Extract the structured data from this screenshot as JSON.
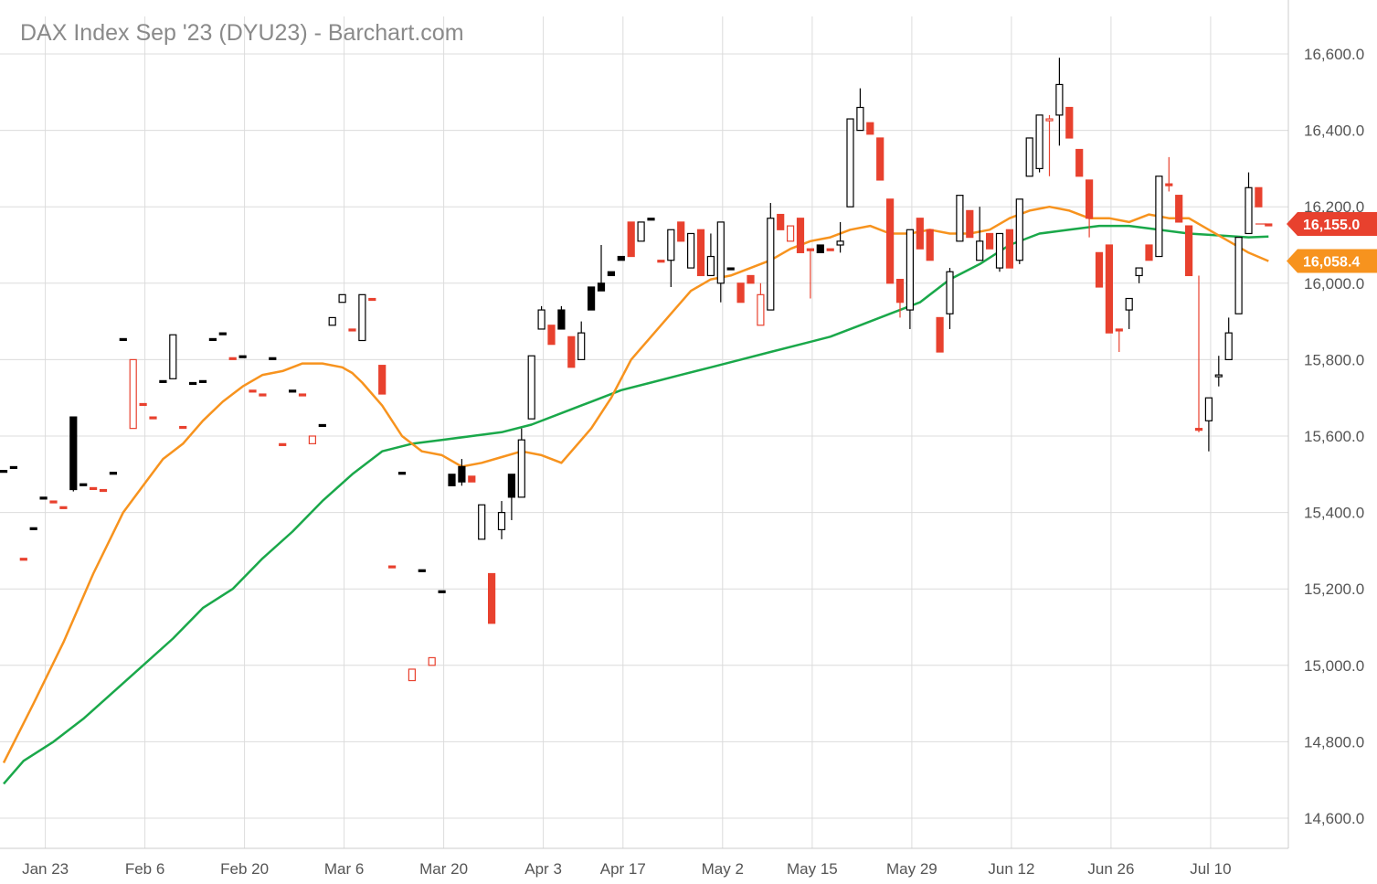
{
  "chart_data": {
    "type": "candlestick",
    "title": "DAX Index Sep '23 (DYU23) - Barchart.com",
    "ylim": [
      14500,
      16700
    ],
    "y_ticks": [
      {
        "value": 14600,
        "label": "14,600.0"
      },
      {
        "value": 14800,
        "label": "14,800.0"
      },
      {
        "value": 15000,
        "label": "15,000.0"
      },
      {
        "value": 15200,
        "label": "15,200.0"
      },
      {
        "value": 15400,
        "label": "15,400.0"
      },
      {
        "value": 15600,
        "label": "15,600.0"
      },
      {
        "value": 15800,
        "label": "15,800.0"
      },
      {
        "value": 16000,
        "label": "16,000.0"
      },
      {
        "value": 16200,
        "label": "16,200.0"
      },
      {
        "value": 16400,
        "label": "16,400.0"
      },
      {
        "value": 16600,
        "label": "16,600.0"
      }
    ],
    "x_ticks": [
      {
        "index": 4,
        "label": "Jan 23"
      },
      {
        "index": 14,
        "label": "Feb 6"
      },
      {
        "index": 24,
        "label": "Feb 20"
      },
      {
        "index": 34,
        "label": "Mar 6"
      },
      {
        "index": 44,
        "label": "Mar 20"
      },
      {
        "index": 54,
        "label": "Apr 3"
      },
      {
        "index": 62,
        "label": "Apr 17"
      },
      {
        "index": 72,
        "label": "May 2"
      },
      {
        "index": 81,
        "label": "May 15"
      },
      {
        "index": 91,
        "label": "May 29"
      },
      {
        "index": 101,
        "label": "Jun 12"
      },
      {
        "index": 111,
        "label": "Jun 26"
      },
      {
        "index": 121,
        "label": "Jul 10"
      }
    ],
    "candles": [
      [
        0,
        15510,
        15510,
        15510,
        15510,
        "k"
      ],
      [
        1,
        15520,
        15520,
        15520,
        15520,
        "k"
      ],
      [
        2,
        15280,
        15280,
        15280,
        15280,
        "r"
      ],
      [
        3,
        15360,
        15360,
        15360,
        15360,
        "k"
      ],
      [
        4,
        15440,
        15440,
        15440,
        15440,
        "k"
      ],
      [
        5,
        15430,
        15430,
        15430,
        15430,
        "r"
      ],
      [
        6,
        15415,
        15415,
        15415,
        15415,
        "r"
      ],
      [
        7,
        15460,
        15650,
        15455,
        15650,
        "k"
      ],
      [
        8,
        15475,
        15475,
        15475,
        15475,
        "k"
      ],
      [
        9,
        15465,
        15465,
        15465,
        15465,
        "r"
      ],
      [
        10,
        15460,
        15460,
        15460,
        15460,
        "r"
      ],
      [
        11,
        15505,
        15505,
        15505,
        15505,
        "k"
      ],
      [
        12,
        15855,
        15855,
        15855,
        15855,
        "k"
      ],
      [
        13,
        15620,
        15800,
        15620,
        15800,
        "ho"
      ],
      [
        14,
        15685,
        15685,
        15685,
        15685,
        "r"
      ],
      [
        15,
        15650,
        15650,
        15650,
        15650,
        "r"
      ],
      [
        16,
        15745,
        15745,
        15745,
        15745,
        "k"
      ],
      [
        17,
        15750,
        15865,
        15750,
        15865,
        "h"
      ],
      [
        18,
        15625,
        15625,
        15625,
        15625,
        "r"
      ],
      [
        19,
        15740,
        15740,
        15740,
        15740,
        "k"
      ],
      [
        20,
        15745,
        15745,
        15745,
        15745,
        "k"
      ],
      [
        21,
        15855,
        15855,
        15855,
        15855,
        "k"
      ],
      [
        22,
        15870,
        15870,
        15870,
        15870,
        "k"
      ],
      [
        23,
        15805,
        15805,
        15805,
        15805,
        "r"
      ],
      [
        24,
        15810,
        15810,
        15810,
        15810,
        "k"
      ],
      [
        25,
        15720,
        15720,
        15720,
        15720,
        "r"
      ],
      [
        26,
        15710,
        15710,
        15710,
        15710,
        "r"
      ],
      [
        27,
        15805,
        15805,
        15805,
        15805,
        "k"
      ],
      [
        28,
        15580,
        15580,
        15580,
        15580,
        "r"
      ],
      [
        29,
        15720,
        15720,
        15720,
        15720,
        "k"
      ],
      [
        30,
        15710,
        15710,
        15710,
        15710,
        "r"
      ],
      [
        31,
        15580,
        15600,
        15580,
        15600,
        "ho"
      ],
      [
        32,
        15630,
        15630,
        15630,
        15630,
        "k"
      ],
      [
        33,
        15890,
        15910,
        15890,
        15910,
        "h"
      ],
      [
        34,
        15950,
        15970,
        15950,
        15970,
        "h"
      ],
      [
        35,
        15880,
        15880,
        15880,
        15880,
        "r"
      ],
      [
        36,
        15850,
        15970,
        15850,
        15970,
        "h"
      ],
      [
        37,
        15960,
        15960,
        15960,
        15960,
        "r"
      ],
      [
        38,
        15785,
        15785,
        15710,
        15710,
        "r"
      ],
      [
        39,
        15260,
        15260,
        15260,
        15260,
        "r"
      ],
      [
        40,
        15505,
        15505,
        15505,
        15505,
        "k"
      ],
      [
        41,
        14960,
        14990,
        14960,
        14990,
        "ho"
      ],
      [
        42,
        15250,
        15250,
        15250,
        15250,
        "k"
      ],
      [
        43,
        15000,
        15020,
        15000,
        15020,
        "ho"
      ],
      [
        44,
        15195,
        15195,
        15195,
        15195,
        "k"
      ],
      [
        45,
        15470,
        15500,
        15470,
        15500,
        "k"
      ],
      [
        46,
        15480,
        15540,
        15470,
        15520,
        "f"
      ],
      [
        47,
        15495,
        15495,
        15480,
        15480,
        "r"
      ],
      [
        48,
        15420,
        15420,
        15330,
        15330,
        "h"
      ],
      [
        49,
        15240,
        15240,
        15110,
        15110,
        "r"
      ],
      [
        50,
        15355,
        15430,
        15330,
        15400,
        "h"
      ],
      [
        51,
        15440,
        15500,
        15380,
        15500,
        "f"
      ],
      [
        52,
        15440,
        15620,
        15440,
        15590,
        "h"
      ],
      [
        53,
        15645,
        15810,
        15645,
        15810,
        "h"
      ],
      [
        54,
        15880,
        15940,
        15880,
        15930,
        "h"
      ],
      [
        55,
        15890,
        15890,
        15840,
        15840,
        "r"
      ],
      [
        56,
        15880,
        15940,
        15880,
        15930,
        "f"
      ],
      [
        57,
        15860,
        15860,
        15780,
        15780,
        "r"
      ],
      [
        58,
        15800,
        15900,
        15800,
        15870,
        "h"
      ],
      [
        59,
        15930,
        15990,
        15930,
        15990,
        "f"
      ],
      [
        60,
        15980,
        16100,
        15980,
        16000,
        "f"
      ],
      [
        61,
        16020,
        16030,
        16020,
        16030,
        "f"
      ],
      [
        62,
        16060,
        16070,
        16060,
        16070,
        "f"
      ],
      [
        63,
        16160,
        16160,
        16070,
        16070,
        "r"
      ],
      [
        64,
        16110,
        16160,
        16110,
        16160,
        "h"
      ],
      [
        65,
        16170,
        16170,
        16170,
        16170,
        "k"
      ],
      [
        66,
        16060,
        16060,
        16060,
        16060,
        "r"
      ],
      [
        67,
        16060,
        16140,
        15990,
        16140,
        "h"
      ],
      [
        68,
        16160,
        16160,
        16110,
        16110,
        "r"
      ],
      [
        69,
        16130,
        16130,
        16040,
        16040,
        "h"
      ],
      [
        70,
        16140,
        16140,
        16020,
        16020,
        "r"
      ],
      [
        71,
        16020,
        16130,
        16020,
        16070,
        "h"
      ],
      [
        72,
        16000,
        16160,
        15950,
        16160,
        "h"
      ],
      [
        73,
        16040,
        16040,
        16040,
        16040,
        "k"
      ],
      [
        74,
        16000,
        16000,
        15950,
        15950,
        "r"
      ],
      [
        75,
        16000,
        16020,
        16000,
        16020,
        "r"
      ],
      [
        76,
        15890,
        16000,
        15890,
        15970,
        "ho"
      ],
      [
        77,
        15930,
        16210,
        15930,
        16170,
        "h"
      ],
      [
        78,
        16180,
        16180,
        16140,
        16140,
        "r"
      ],
      [
        79,
        16150,
        16150,
        16110,
        16110,
        "ho"
      ],
      [
        80,
        16170,
        16170,
        16080,
        16080,
        "r"
      ],
      [
        81,
        16090,
        16090,
        15960,
        16090,
        "r"
      ],
      [
        82,
        16100,
        16100,
        16080,
        16080,
        "k"
      ],
      [
        83,
        16090,
        16090,
        16090,
        16090,
        "r"
      ],
      [
        84,
        16100,
        16160,
        16080,
        16110,
        "h"
      ],
      [
        85,
        16200,
        16430,
        16200,
        16430,
        "h"
      ],
      [
        86,
        16400,
        16510,
        16400,
        16460,
        "h"
      ],
      [
        87,
        16420,
        16420,
        16390,
        16390,
        "r"
      ],
      [
        88,
        16380,
        16380,
        16270,
        16270,
        "r"
      ],
      [
        89,
        16220,
        16220,
        16000,
        16000,
        "r"
      ],
      [
        90,
        16010,
        16010,
        15910,
        15950,
        "r"
      ],
      [
        91,
        15930,
        16140,
        15880,
        16140,
        "h"
      ],
      [
        92,
        16170,
        16170,
        16090,
        16090,
        "r"
      ],
      [
        93,
        16140,
        16140,
        16060,
        16060,
        "r"
      ],
      [
        94,
        15910,
        15910,
        15820,
        15820,
        "r"
      ],
      [
        95,
        15920,
        16040,
        15880,
        16030,
        "h"
      ],
      [
        96,
        16110,
        16230,
        16110,
        16230,
        "h"
      ],
      [
        97,
        16190,
        16190,
        16120,
        16120,
        "r"
      ],
      [
        98,
        16110,
        16200,
        16060,
        16060,
        "h"
      ],
      [
        99,
        16130,
        16130,
        16090,
        16090,
        "r"
      ],
      [
        100,
        16040,
        16130,
        16030,
        16130,
        "h"
      ],
      [
        101,
        16140,
        16140,
        16040,
        16040,
        "r"
      ],
      [
        102,
        16060,
        16220,
        16050,
        16220,
        "h"
      ],
      [
        103,
        16280,
        16380,
        16280,
        16380,
        "h"
      ],
      [
        104,
        16440,
        16440,
        16290,
        16300,
        "h"
      ],
      [
        105,
        16430,
        16440,
        16280,
        16430,
        "ho"
      ],
      [
        106,
        16440,
        16590,
        16360,
        16520,
        "h"
      ],
      [
        107,
        16460,
        16460,
        16380,
        16380,
        "r"
      ],
      [
        108,
        16350,
        16350,
        16280,
        16280,
        "r"
      ],
      [
        109,
        16270,
        16270,
        16120,
        16170,
        "r"
      ],
      [
        110,
        16080,
        16080,
        15990,
        15990,
        "r"
      ],
      [
        111,
        16100,
        16100,
        15870,
        15870,
        "r"
      ],
      [
        112,
        15880,
        15880,
        15820,
        15880,
        "r"
      ],
      [
        113,
        15960,
        15960,
        15880,
        15930,
        "h"
      ],
      [
        114,
        16020,
        16040,
        16000,
        16040,
        "h"
      ],
      [
        115,
        16100,
        16100,
        16060,
        16060,
        "r"
      ],
      [
        116,
        16070,
        16280,
        16070,
        16280,
        "h"
      ],
      [
        117,
        16260,
        16330,
        16240,
        16260,
        "r"
      ],
      [
        118,
        16230,
        16230,
        16160,
        16160,
        "r"
      ],
      [
        119,
        16150,
        16150,
        16020,
        16020,
        "r"
      ],
      [
        120,
        15620,
        16020,
        15610,
        15620,
        "r"
      ],
      [
        121,
        15640,
        15700,
        15560,
        15700,
        "h"
      ],
      [
        122,
        15760,
        15810,
        15730,
        15760,
        "h"
      ],
      [
        123,
        15800,
        15910,
        15800,
        15870,
        "h"
      ],
      [
        124,
        15920,
        16120,
        15920,
        16120,
        "h"
      ],
      [
        125,
        16130,
        16290,
        16130,
        16250,
        "h"
      ],
      [
        126,
        16250,
        16250,
        16200,
        16200,
        "r"
      ],
      [
        127,
        16155,
        16155,
        16155,
        16155,
        "r"
      ]
    ],
    "ma_fast": [
      [
        0,
        14745
      ],
      [
        3,
        14900
      ],
      [
        6,
        15060
      ],
      [
        9,
        15240
      ],
      [
        12,
        15400
      ],
      [
        14,
        15470
      ],
      [
        16,
        15540
      ],
      [
        18,
        15580
      ],
      [
        20,
        15640
      ],
      [
        22,
        15690
      ],
      [
        24,
        15730
      ],
      [
        26,
        15760
      ],
      [
        28,
        15770
      ],
      [
        30,
        15790
      ],
      [
        32,
        15790
      ],
      [
        34,
        15780
      ],
      [
        35,
        15765
      ],
      [
        36,
        15740
      ],
      [
        38,
        15680
      ],
      [
        40,
        15600
      ],
      [
        42,
        15560
      ],
      [
        44,
        15550
      ],
      [
        46,
        15520
      ],
      [
        48,
        15530
      ],
      [
        50,
        15545
      ],
      [
        52,
        15560
      ],
      [
        54,
        15550
      ],
      [
        56,
        15530
      ],
      [
        58,
        15590
      ],
      [
        59,
        15620
      ],
      [
        61,
        15700
      ],
      [
        63,
        15800
      ],
      [
        65,
        15860
      ],
      [
        67,
        15920
      ],
      [
        69,
        15980
      ],
      [
        71,
        16010
      ],
      [
        73,
        16020
      ],
      [
        75,
        16040
      ],
      [
        77,
        16060
      ],
      [
        79,
        16090
      ],
      [
        81,
        16110
      ],
      [
        83,
        16120
      ],
      [
        85,
        16140
      ],
      [
        87,
        16150
      ],
      [
        89,
        16130
      ],
      [
        91,
        16130
      ],
      [
        93,
        16140
      ],
      [
        95,
        16130
      ],
      [
        97,
        16130
      ],
      [
        99,
        16140
      ],
      [
        101,
        16170
      ],
      [
        103,
        16190
      ],
      [
        105,
        16200
      ],
      [
        107,
        16190
      ],
      [
        109,
        16170
      ],
      [
        111,
        16170
      ],
      [
        113,
        16160
      ],
      [
        115,
        16180
      ],
      [
        117,
        16170
      ],
      [
        119,
        16170
      ],
      [
        121,
        16140
      ],
      [
        123,
        16110
      ],
      [
        125,
        16080
      ],
      [
        127,
        16058
      ]
    ],
    "ma_slow": [
      [
        0,
        14690
      ],
      [
        2,
        14750
      ],
      [
        5,
        14800
      ],
      [
        8,
        14860
      ],
      [
        11,
        14930
      ],
      [
        14,
        15000
      ],
      [
        17,
        15070
      ],
      [
        20,
        15150
      ],
      [
        23,
        15200
      ],
      [
        26,
        15280
      ],
      [
        29,
        15350
      ],
      [
        32,
        15430
      ],
      [
        35,
        15500
      ],
      [
        38,
        15560
      ],
      [
        41,
        15580
      ],
      [
        44,
        15590
      ],
      [
        47,
        15600
      ],
      [
        50,
        15610
      ],
      [
        53,
        15630
      ],
      [
        56,
        15660
      ],
      [
        59,
        15690
      ],
      [
        62,
        15720
      ],
      [
        65,
        15740
      ],
      [
        68,
        15760
      ],
      [
        71,
        15780
      ],
      [
        74,
        15800
      ],
      [
        77,
        15820
      ],
      [
        80,
        15840
      ],
      [
        83,
        15860
      ],
      [
        86,
        15890
      ],
      [
        89,
        15920
      ],
      [
        92,
        15950
      ],
      [
        95,
        16010
      ],
      [
        98,
        16050
      ],
      [
        101,
        16100
      ],
      [
        104,
        16130
      ],
      [
        107,
        16140
      ],
      [
        110,
        16150
      ],
      [
        113,
        16150
      ],
      [
        116,
        16140
      ],
      [
        119,
        16130
      ],
      [
        122,
        16125
      ],
      [
        125,
        16120
      ],
      [
        127,
        16122
      ]
    ],
    "last_price": {
      "label": "16,155.0",
      "value": 16155,
      "color": "#e8412e"
    },
    "ma_fast_tag": {
      "label": "16,058.4",
      "value": 16058,
      "color": "#f7931e"
    },
    "colors": {
      "up": "#000000",
      "down": "#e8412e",
      "ma_fast": "#f7931e",
      "ma_slow": "#1aa84a",
      "grid": "#dcdcdc"
    }
  }
}
